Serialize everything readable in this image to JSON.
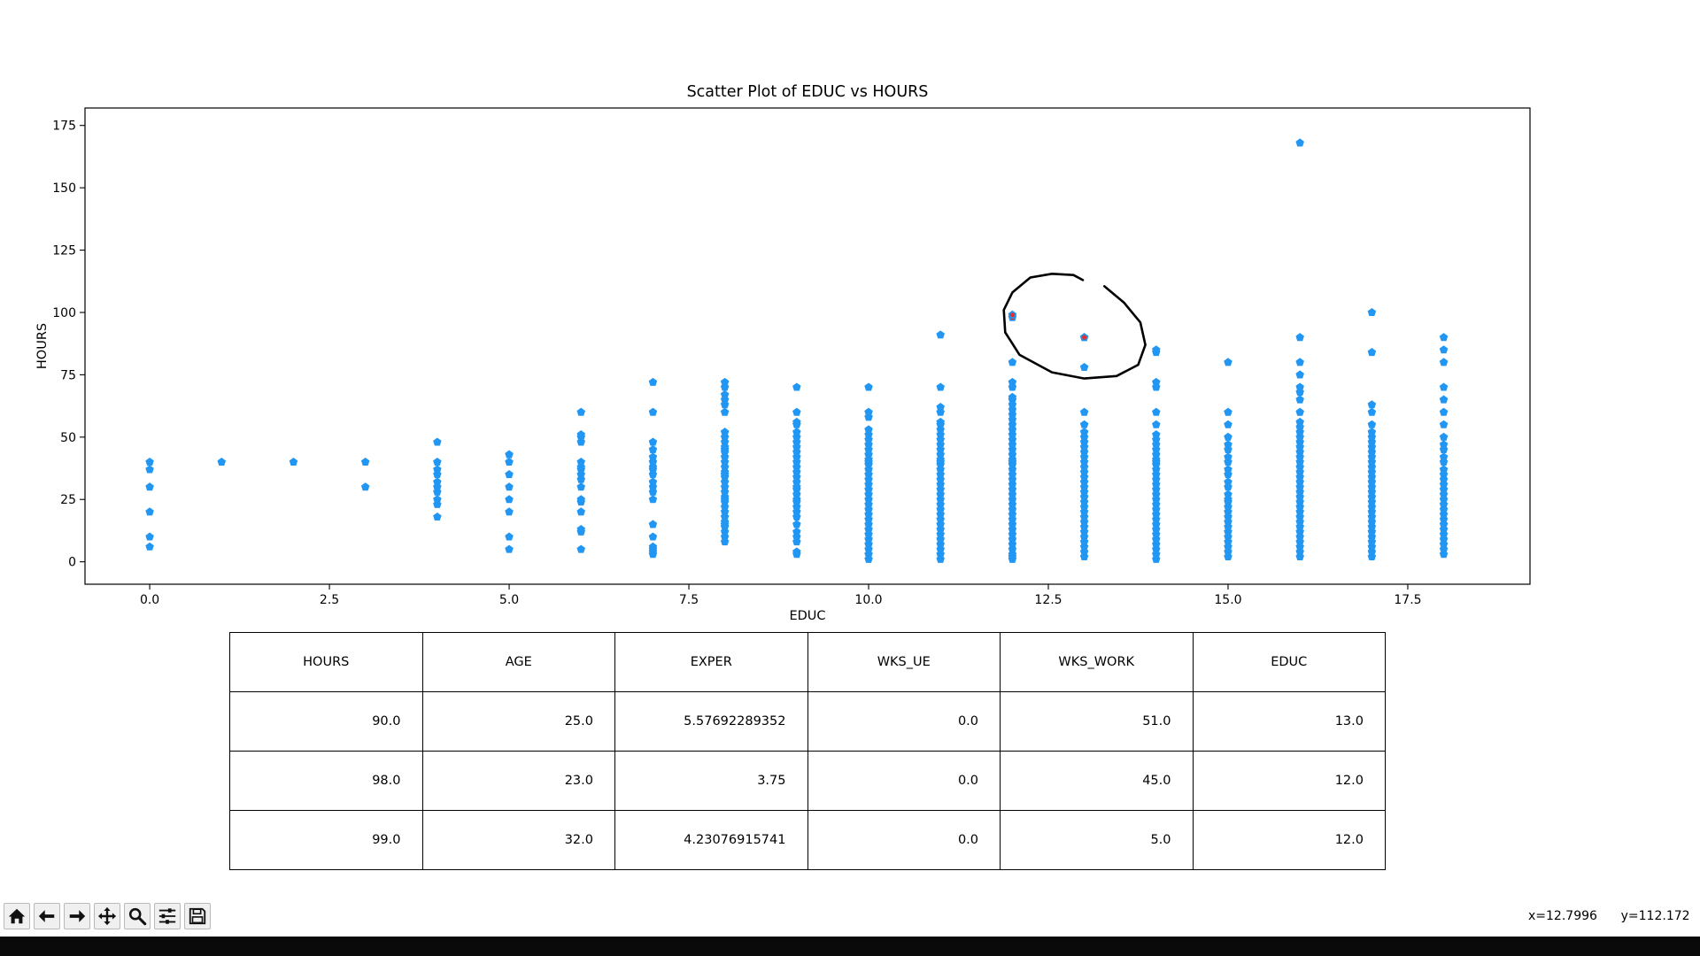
{
  "chart_data": {
    "type": "scatter",
    "title": "Scatter Plot of EDUC vs HOURS",
    "xlabel": "EDUC",
    "ylabel": "HOURS",
    "xlim": [
      -0.9,
      19.2
    ],
    "ylim": [
      -9,
      182
    ],
    "x_ticks": [
      0.0,
      2.5,
      5.0,
      7.5,
      10.0,
      12.5,
      15.0,
      17.5
    ],
    "x_tick_labels": [
      "0.0",
      "2.5",
      "5.0",
      "7.5",
      "10.0",
      "12.5",
      "15.0",
      "17.5"
    ],
    "y_ticks": [
      0,
      25,
      50,
      75,
      100,
      125,
      150,
      175
    ],
    "y_tick_labels": [
      "0",
      "25",
      "50",
      "75",
      "100",
      "125",
      "150",
      "175"
    ],
    "grid": false,
    "marker": "pentagon",
    "point_color": "#2196f3",
    "highlight_color": "#e03030",
    "columns": [
      {
        "x": 0,
        "y": [
          6,
          10,
          20,
          30,
          37,
          40
        ]
      },
      {
        "x": 1,
        "y": [
          40
        ]
      },
      {
        "x": 2,
        "y": [
          40
        ]
      },
      {
        "x": 3,
        "y": [
          30,
          40
        ]
      },
      {
        "x": 4,
        "y": [
          18,
          23,
          25,
          28,
          30,
          32,
          35,
          37,
          40,
          48
        ]
      },
      {
        "x": 5,
        "y": [
          5,
          10,
          20,
          25,
          30,
          35,
          40,
          43
        ]
      },
      {
        "x": 6,
        "y": [
          5,
          12,
          13,
          20,
          24,
          25,
          30,
          33,
          35,
          37,
          38,
          40,
          48,
          50,
          51,
          60
        ]
      },
      {
        "x": 7,
        "y": [
          3,
          4,
          5,
          6,
          10,
          15,
          25,
          28,
          30,
          32,
          35,
          37,
          38,
          40,
          42,
          45,
          48,
          60,
          72
        ]
      },
      {
        "x": 8,
        "y": [
          8,
          10,
          12,
          14,
          15,
          16,
          18,
          20,
          22,
          24,
          25,
          26,
          28,
          30,
          32,
          34,
          35,
          36,
          38,
          40,
          42,
          44,
          45,
          46,
          48,
          50,
          52,
          60,
          63,
          65,
          67,
          70,
          72
        ]
      },
      {
        "x": 9,
        "y": [
          3,
          4,
          8,
          10,
          12,
          15,
          18,
          20,
          22,
          24,
          25,
          27,
          29,
          30,
          32,
          34,
          36,
          38,
          40,
          42,
          44,
          46,
          48,
          50,
          52,
          55,
          56,
          60,
          70
        ]
      },
      {
        "x": 10,
        "y": [
          1,
          3,
          5,
          7,
          9,
          11,
          13,
          15,
          17,
          19,
          21,
          23,
          25,
          27,
          29,
          31,
          33,
          35,
          37,
          39,
          40,
          41,
          43,
          45,
          47,
          49,
          51,
          53,
          58,
          60,
          70
        ]
      },
      {
        "x": 11,
        "y": [
          1,
          3,
          5,
          7,
          9,
          11,
          13,
          15,
          17,
          19,
          21,
          23,
          25,
          27,
          29,
          31,
          33,
          35,
          37,
          39,
          40,
          41,
          43,
          45,
          47,
          49,
          51,
          53,
          55,
          56,
          60,
          62,
          70,
          91
        ]
      },
      {
        "x": 12,
        "y": [
          1,
          2,
          3,
          5,
          7,
          9,
          11,
          13,
          15,
          17,
          19,
          21,
          23,
          25,
          27,
          29,
          31,
          33,
          35,
          37,
          39,
          40,
          41,
          43,
          45,
          47,
          49,
          51,
          53,
          55,
          57,
          59,
          61,
          63,
          65,
          66,
          70,
          72,
          80,
          98,
          99
        ]
      },
      {
        "x": 13,
        "y": [
          2,
          4,
          6,
          8,
          10,
          12,
          14,
          16,
          18,
          20,
          22,
          24,
          26,
          28,
          30,
          32,
          34,
          36,
          38,
          40,
          42,
          44,
          46,
          48,
          50,
          52,
          55,
          60,
          78,
          90
        ]
      },
      {
        "x": 14,
        "y": [
          1,
          3,
          5,
          7,
          9,
          11,
          13,
          15,
          17,
          19,
          21,
          23,
          25,
          27,
          29,
          31,
          33,
          35,
          37,
          39,
          40,
          41,
          43,
          45,
          47,
          49,
          51,
          55,
          60,
          70,
          72,
          84,
          85
        ]
      },
      {
        "x": 15,
        "y": [
          2,
          4,
          6,
          8,
          10,
          12,
          14,
          16,
          18,
          20,
          22,
          24,
          25,
          27,
          30,
          32,
          35,
          37,
          40,
          42,
          45,
          47,
          50,
          55,
          60,
          80
        ]
      },
      {
        "x": 16,
        "y": [
          2,
          4,
          6,
          8,
          10,
          12,
          14,
          16,
          18,
          20,
          22,
          24,
          26,
          28,
          30,
          32,
          34,
          36,
          38,
          40,
          42,
          44,
          46,
          48,
          50,
          52,
          54,
          56,
          60,
          65,
          68,
          70,
          75,
          80,
          90,
          168
        ]
      },
      {
        "x": 17,
        "y": [
          2,
          4,
          6,
          8,
          10,
          12,
          14,
          16,
          18,
          20,
          22,
          24,
          26,
          28,
          30,
          32,
          34,
          36,
          38,
          40,
          42,
          44,
          46,
          48,
          50,
          52,
          55,
          60,
          63,
          84,
          100
        ]
      },
      {
        "x": 18,
        "y": [
          3,
          5,
          7,
          9,
          11,
          13,
          15,
          17,
          19,
          21,
          23,
          25,
          27,
          29,
          31,
          33,
          35,
          37,
          40,
          42,
          45,
          47,
          50,
          55,
          60,
          65,
          70,
          80,
          85,
          90
        ]
      }
    ],
    "highlighted_points": [
      {
        "x": 12,
        "y": 98
      },
      {
        "x": 12,
        "y": 99
      },
      {
        "x": 13,
        "y": 90
      }
    ]
  },
  "table": {
    "headers": [
      "HOURS",
      "AGE",
      "EXPER",
      "WKS_UE",
      "WKS_WORK",
      "EDUC"
    ],
    "rows": [
      [
        "90.0",
        "25.0",
        "5.57692289352",
        "0.0",
        "51.0",
        "13.0"
      ],
      [
        "98.0",
        "23.0",
        "3.75",
        "0.0",
        "45.0",
        "12.0"
      ],
      [
        "99.0",
        "32.0",
        "4.23076915741",
        "0.0",
        "5.0",
        "12.0"
      ]
    ]
  },
  "toolbar": {
    "buttons": [
      {
        "name": "home-button",
        "icon": "home-icon"
      },
      {
        "name": "back-button",
        "icon": "arrow-left-icon"
      },
      {
        "name": "forward-button",
        "icon": "arrow-right-icon"
      },
      {
        "name": "pan-button",
        "icon": "move-icon"
      },
      {
        "name": "zoom-button",
        "icon": "magnifier-icon"
      },
      {
        "name": "configure-subplots-button",
        "icon": "sliders-icon"
      },
      {
        "name": "save-button",
        "icon": "floppy-disk-icon"
      }
    ]
  },
  "status": {
    "x_readout": "x=12.7996",
    "y_readout": "y=112.172"
  }
}
